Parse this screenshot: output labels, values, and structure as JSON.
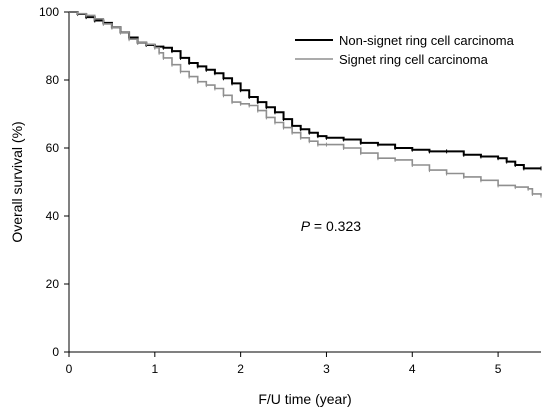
{
  "chart_data": {
    "type": "line",
    "xlabel": "F/U time (year)",
    "ylabel": "Overall survival (%)",
    "xlim": [
      0,
      5.5
    ],
    "ylim": [
      0,
      100
    ],
    "xticks": [
      "0",
      "1",
      "2",
      "3",
      "4",
      "5"
    ],
    "yticks": [
      "0",
      "20",
      "40",
      "60",
      "80",
      "100"
    ],
    "legend_position": "top-right",
    "grid": false,
    "annotation": {
      "p_symbol": "P",
      "p_text": " = 0.323",
      "x": 2.7,
      "y": 37
    },
    "series": [
      {
        "name": "Non-signet ring cell carcinoma",
        "color": "#000000",
        "width": 2,
        "points": [
          [
            0,
            100
          ],
          [
            0.1,
            99.4
          ],
          [
            0.2,
            98.5
          ],
          [
            0.3,
            97.5
          ],
          [
            0.4,
            96.8
          ],
          [
            0.5,
            95.5
          ],
          [
            0.6,
            94
          ],
          [
            0.7,
            92.5
          ],
          [
            0.8,
            91
          ],
          [
            0.9,
            90.3
          ],
          [
            1.0,
            89.8
          ],
          [
            1.1,
            89.5
          ],
          [
            1.2,
            88.5
          ],
          [
            1.3,
            86.5
          ],
          [
            1.4,
            85
          ],
          [
            1.5,
            84
          ],
          [
            1.6,
            83
          ],
          [
            1.7,
            82
          ],
          [
            1.8,
            80.5
          ],
          [
            1.9,
            79
          ],
          [
            2.0,
            77
          ],
          [
            2.1,
            75
          ],
          [
            2.2,
            73.5
          ],
          [
            2.3,
            72
          ],
          [
            2.4,
            70.5
          ],
          [
            2.5,
            68.5
          ],
          [
            2.6,
            66.5
          ],
          [
            2.7,
            65.5
          ],
          [
            2.8,
            64.5
          ],
          [
            2.9,
            63.5
          ],
          [
            3.0,
            63
          ],
          [
            3.2,
            62.5
          ],
          [
            3.4,
            61.5
          ],
          [
            3.6,
            61
          ],
          [
            3.8,
            60
          ],
          [
            4.0,
            59.5
          ],
          [
            4.2,
            59
          ],
          [
            4.4,
            59
          ],
          [
            4.6,
            58
          ],
          [
            4.8,
            57.5
          ],
          [
            5.0,
            57
          ],
          [
            5.1,
            56
          ],
          [
            5.2,
            55
          ],
          [
            5.3,
            54
          ],
          [
            5.5,
            54
          ]
        ]
      },
      {
        "name": "Signet ring cell carcinoma",
        "color": "#8f8f8f",
        "width": 1.6,
        "points": [
          [
            0,
            100
          ],
          [
            0.1,
            99.5
          ],
          [
            0.2,
            99
          ],
          [
            0.3,
            98
          ],
          [
            0.4,
            96.5
          ],
          [
            0.5,
            95.5
          ],
          [
            0.6,
            94
          ],
          [
            0.7,
            92
          ],
          [
            0.8,
            91
          ],
          [
            0.9,
            90.5
          ],
          [
            1.0,
            89.5
          ],
          [
            1.05,
            88
          ],
          [
            1.1,
            86.5
          ],
          [
            1.2,
            84.5
          ],
          [
            1.3,
            82.5
          ],
          [
            1.4,
            81
          ],
          [
            1.5,
            79.5
          ],
          [
            1.6,
            78.5
          ],
          [
            1.7,
            77.5
          ],
          [
            1.8,
            75.5
          ],
          [
            1.9,
            73.5
          ],
          [
            2.0,
            73
          ],
          [
            2.1,
            72.5
          ],
          [
            2.2,
            71
          ],
          [
            2.3,
            69
          ],
          [
            2.4,
            67.5
          ],
          [
            2.5,
            66
          ],
          [
            2.6,
            64.5
          ],
          [
            2.7,
            63
          ],
          [
            2.8,
            62
          ],
          [
            2.9,
            61
          ],
          [
            3.0,
            61
          ],
          [
            3.2,
            60
          ],
          [
            3.4,
            58.5
          ],
          [
            3.6,
            57
          ],
          [
            3.8,
            56.5
          ],
          [
            4.0,
            55
          ],
          [
            4.2,
            53.5
          ],
          [
            4.4,
            52.5
          ],
          [
            4.6,
            51.5
          ],
          [
            4.8,
            50.5
          ],
          [
            5.0,
            49
          ],
          [
            5.2,
            48.5
          ],
          [
            5.35,
            48
          ],
          [
            5.4,
            46.5
          ],
          [
            5.5,
            46
          ]
        ]
      }
    ]
  }
}
